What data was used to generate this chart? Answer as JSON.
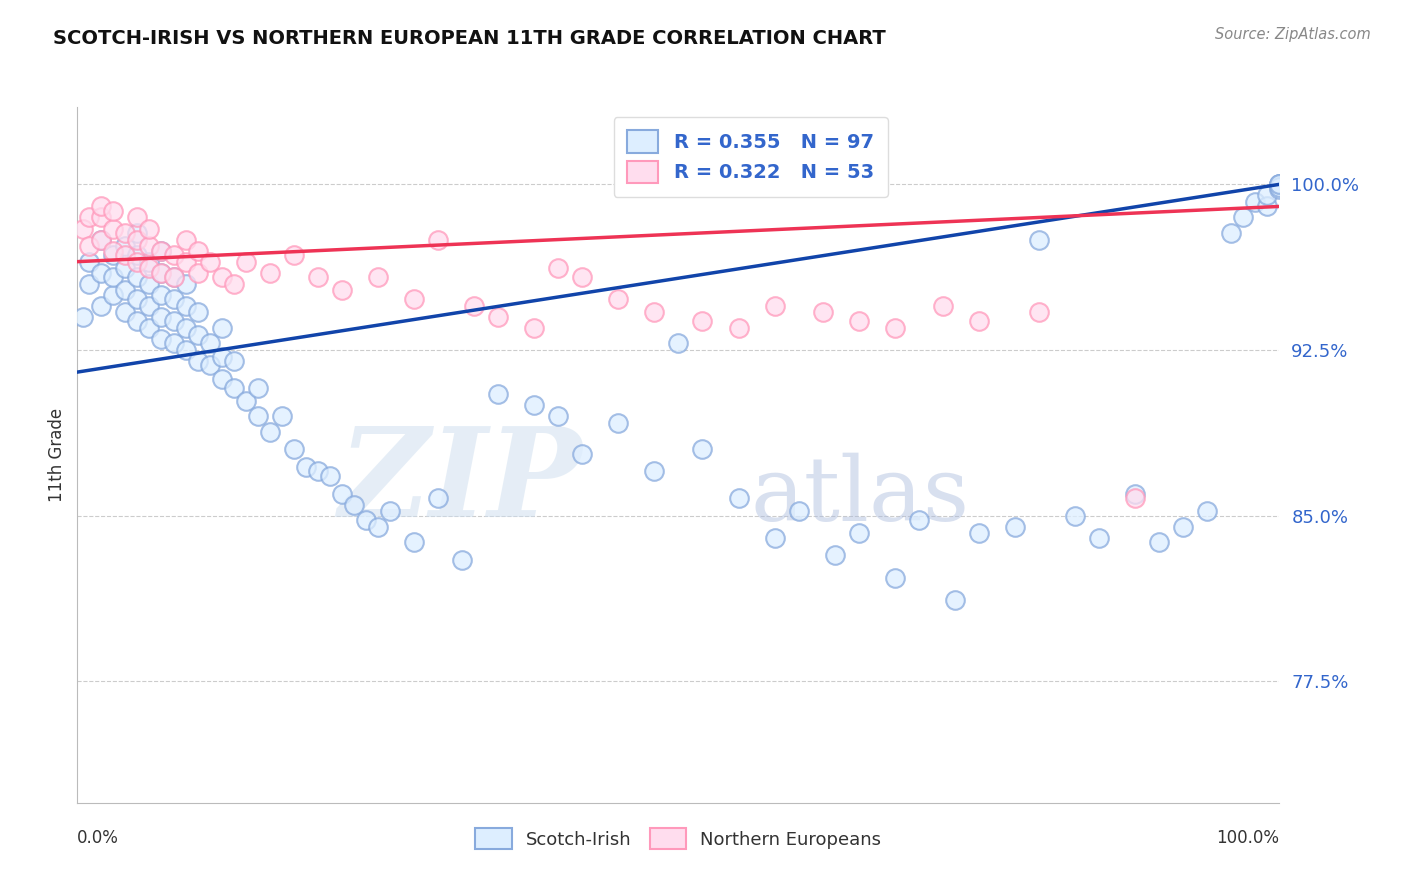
{
  "title": "SCOTCH-IRISH VS NORTHERN EUROPEAN 11TH GRADE CORRELATION CHART",
  "source": "Source: ZipAtlas.com",
  "ylabel": "11th Grade",
  "yticks": [
    0.775,
    0.85,
    0.925,
    1.0
  ],
  "ytick_labels": [
    "77.5%",
    "85.0%",
    "92.5%",
    "100.0%"
  ],
  "xlim": [
    0.0,
    1.0
  ],
  "ylim": [
    0.72,
    1.035
  ],
  "legend_blue_label": "Scotch-Irish",
  "legend_pink_label": "Northern Europeans",
  "R_blue": 0.355,
  "N_blue": 97,
  "R_pink": 0.322,
  "N_pink": 53,
  "blue_color": "#88AADD",
  "pink_color": "#FF99BB",
  "blue_line_color": "#1144AA",
  "pink_line_color": "#EE3355",
  "watermark_zip": "ZIP",
  "watermark_atlas": "atlas",
  "blue_line_start_y": 0.915,
  "blue_line_end_y": 1.0,
  "pink_line_start_y": 0.965,
  "pink_line_end_y": 0.99,
  "blue_scatter_x": [
    0.005,
    0.01,
    0.01,
    0.02,
    0.02,
    0.02,
    0.03,
    0.03,
    0.03,
    0.04,
    0.04,
    0.04,
    0.04,
    0.05,
    0.05,
    0.05,
    0.05,
    0.05,
    0.06,
    0.06,
    0.06,
    0.06,
    0.07,
    0.07,
    0.07,
    0.07,
    0.07,
    0.08,
    0.08,
    0.08,
    0.08,
    0.09,
    0.09,
    0.09,
    0.09,
    0.1,
    0.1,
    0.1,
    0.11,
    0.11,
    0.12,
    0.12,
    0.12,
    0.13,
    0.13,
    0.14,
    0.15,
    0.15,
    0.16,
    0.17,
    0.18,
    0.19,
    0.2,
    0.21,
    0.22,
    0.23,
    0.24,
    0.25,
    0.26,
    0.28,
    0.3,
    0.32,
    0.35,
    0.38,
    0.4,
    0.42,
    0.45,
    0.48,
    0.5,
    0.52,
    0.55,
    0.58,
    0.6,
    0.63,
    0.65,
    0.68,
    0.7,
    0.73,
    0.75,
    0.78,
    0.8,
    0.83,
    0.85,
    0.88,
    0.9,
    0.92,
    0.94,
    0.96,
    0.97,
    0.98,
    0.99,
    0.99,
    1.0,
    1.0,
    1.0,
    1.0,
    1.0
  ],
  "blue_scatter_y": [
    0.94,
    0.955,
    0.965,
    0.945,
    0.96,
    0.975,
    0.95,
    0.958,
    0.968,
    0.942,
    0.952,
    0.962,
    0.972,
    0.938,
    0.948,
    0.958,
    0.968,
    0.978,
    0.935,
    0.945,
    0.955,
    0.965,
    0.93,
    0.94,
    0.95,
    0.96,
    0.97,
    0.928,
    0.938,
    0.948,
    0.958,
    0.925,
    0.935,
    0.945,
    0.955,
    0.92,
    0.932,
    0.942,
    0.918,
    0.928,
    0.912,
    0.922,
    0.935,
    0.908,
    0.92,
    0.902,
    0.895,
    0.908,
    0.888,
    0.895,
    0.88,
    0.872,
    0.87,
    0.868,
    0.86,
    0.855,
    0.848,
    0.845,
    0.852,
    0.838,
    0.858,
    0.83,
    0.905,
    0.9,
    0.895,
    0.878,
    0.892,
    0.87,
    0.928,
    0.88,
    0.858,
    0.84,
    0.852,
    0.832,
    0.842,
    0.822,
    0.848,
    0.812,
    0.842,
    0.845,
    0.975,
    0.85,
    0.84,
    0.86,
    0.838,
    0.845,
    0.852,
    0.978,
    0.985,
    0.992,
    0.99,
    0.995,
    0.998,
    1.0,
    1.0,
    0.999,
    1.0
  ],
  "pink_scatter_x": [
    0.005,
    0.01,
    0.01,
    0.02,
    0.02,
    0.02,
    0.03,
    0.03,
    0.03,
    0.04,
    0.04,
    0.05,
    0.05,
    0.05,
    0.06,
    0.06,
    0.06,
    0.07,
    0.07,
    0.08,
    0.08,
    0.09,
    0.09,
    0.1,
    0.1,
    0.11,
    0.12,
    0.13,
    0.14,
    0.16,
    0.18,
    0.2,
    0.22,
    0.25,
    0.28,
    0.3,
    0.33,
    0.35,
    0.38,
    0.4,
    0.42,
    0.45,
    0.48,
    0.52,
    0.55,
    0.58,
    0.62,
    0.65,
    0.68,
    0.72,
    0.75,
    0.8,
    0.88
  ],
  "pink_scatter_y": [
    0.98,
    0.972,
    0.985,
    0.975,
    0.985,
    0.99,
    0.97,
    0.98,
    0.988,
    0.968,
    0.978,
    0.965,
    0.975,
    0.985,
    0.962,
    0.972,
    0.98,
    0.96,
    0.97,
    0.958,
    0.968,
    0.965,
    0.975,
    0.96,
    0.97,
    0.965,
    0.958,
    0.955,
    0.965,
    0.96,
    0.968,
    0.958,
    0.952,
    0.958,
    0.948,
    0.975,
    0.945,
    0.94,
    0.935,
    0.962,
    0.958,
    0.948,
    0.942,
    0.938,
    0.935,
    0.945,
    0.942,
    0.938,
    0.935,
    0.945,
    0.938,
    0.942,
    0.858
  ]
}
